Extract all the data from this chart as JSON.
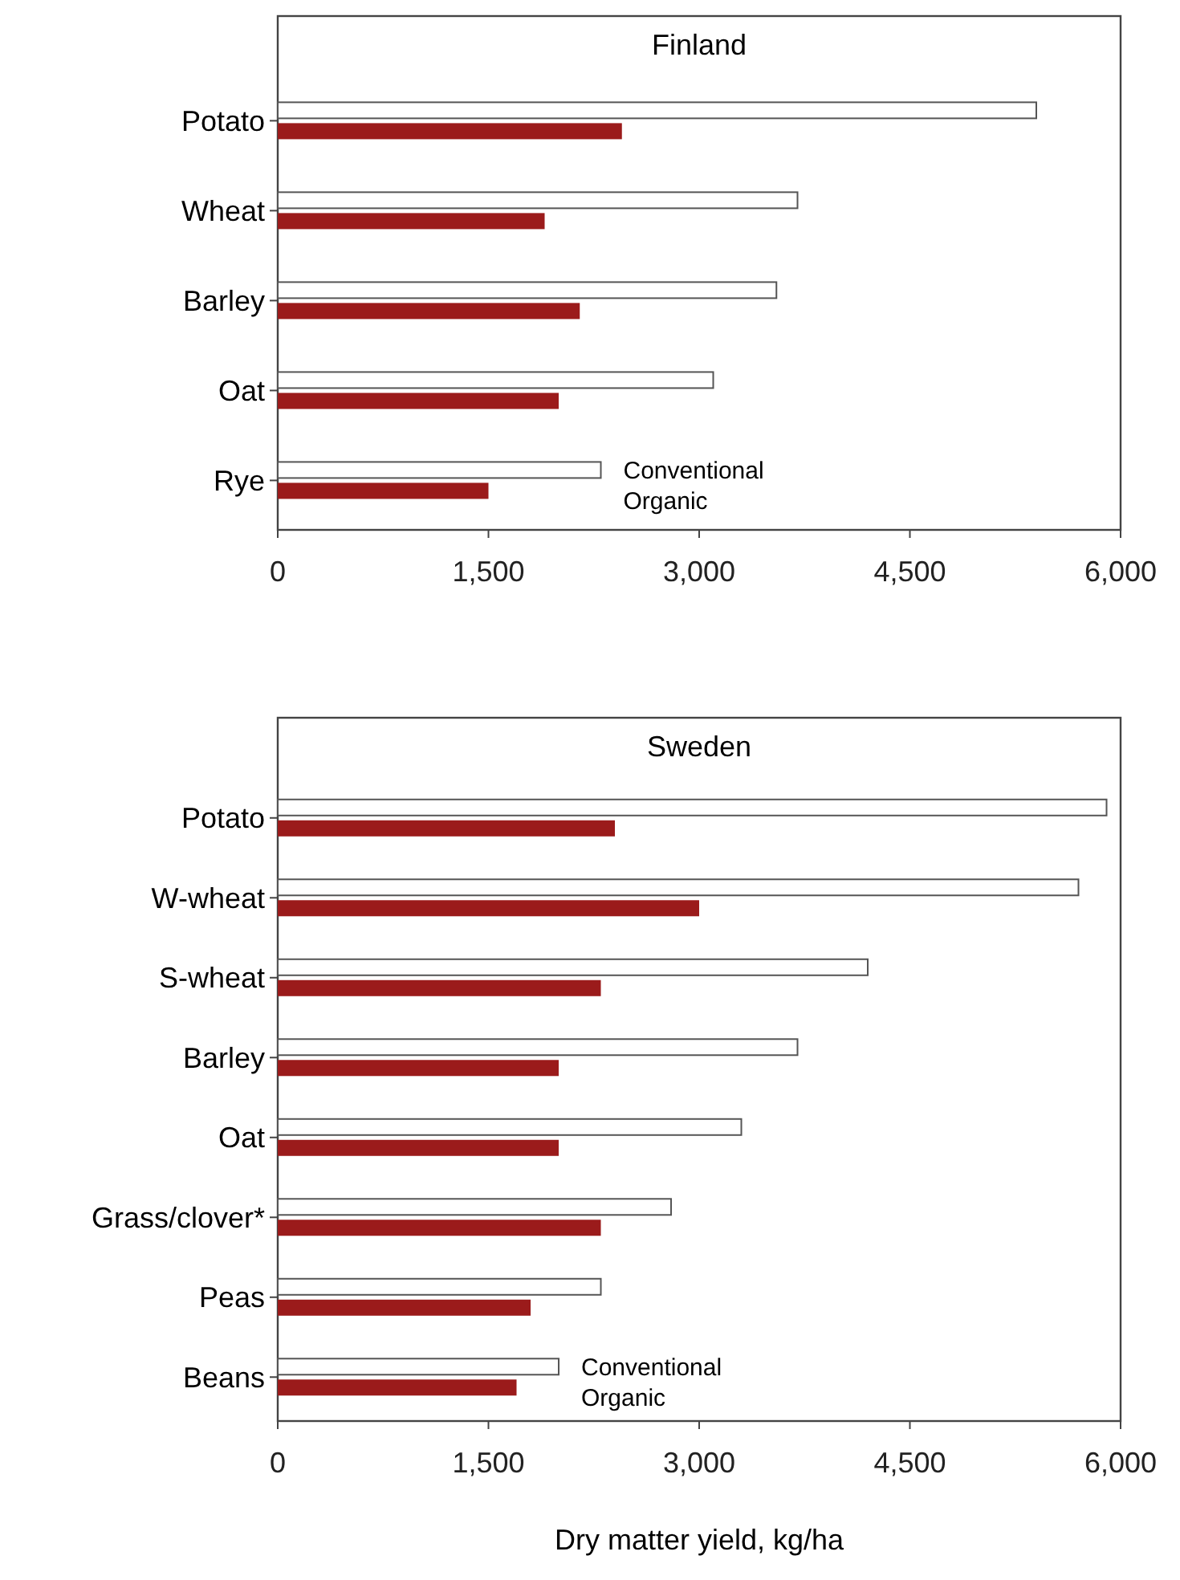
{
  "chart_data": [
    {
      "type": "bar",
      "orientation": "horizontal",
      "title": "Finland",
      "categories": [
        "Potato",
        "Wheat",
        "Barley",
        "Oat",
        "Rye"
      ],
      "series": [
        {
          "name": "Conventional",
          "color": "#ffffff",
          "values": [
            5400,
            3700,
            3550,
            3100,
            2300
          ]
        },
        {
          "name": "Organic",
          "color": "#9b1b1b",
          "values": [
            2450,
            1900,
            2150,
            2000,
            1500
          ]
        }
      ],
      "xlim": [
        0,
        6000
      ],
      "xticks": [
        0,
        {
          "value": 1500,
          "label": "1,500"
        },
        {
          "value": 3000,
          "label": "3,000"
        },
        {
          "value": 4500,
          "label": "4,500"
        },
        {
          "value": 6000,
          "label": "6,000"
        }
      ],
      "grid": false,
      "legend": "bottom"
    },
    {
      "type": "bar",
      "orientation": "horizontal",
      "title": "Sweden",
      "xlabel": "Dry matter yield, kg/ha",
      "categories": [
        "Potato",
        "W-wheat",
        "S-wheat",
        "Barley",
        "Oat",
        "Grass/clover*",
        "Peas",
        "Beans"
      ],
      "series": [
        {
          "name": "Conventional",
          "color": "#ffffff",
          "values": [
            5900,
            5700,
            4200,
            3700,
            3300,
            2800,
            2300,
            2000
          ]
        },
        {
          "name": "Organic",
          "color": "#9b1b1b",
          "values": [
            2400,
            3000,
            2300,
            2000,
            2000,
            2300,
            1800,
            1700
          ]
        }
      ],
      "xlim": [
        0,
        6000
      ],
      "xticks": [
        0,
        {
          "value": 1500,
          "label": "1,500"
        },
        {
          "value": 3000,
          "label": "3,000"
        },
        {
          "value": 4500,
          "label": "4,500"
        },
        {
          "value": 6000,
          "label": "6,000"
        }
      ],
      "grid": false,
      "legend": "bottom"
    }
  ]
}
